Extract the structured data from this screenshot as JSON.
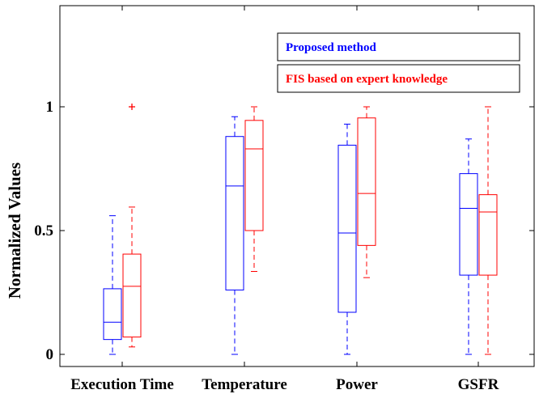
{
  "chart_data": {
    "type": "boxplot",
    "title": "",
    "xlabel": "",
    "ylabel": "Normalized Values",
    "ylim": [
      -0.06,
      1.4
    ],
    "yticks": [
      0,
      0.5,
      1
    ],
    "ytick_labels": [
      "0",
      "0.5",
      "1"
    ],
    "grid": false,
    "legend_position": "top-right",
    "categories": [
      "Execution Time",
      "Temperature",
      "Power",
      "GSFR"
    ],
    "series": [
      {
        "name": "Proposed method",
        "color": "#0000ff",
        "boxes": [
          {
            "whisker_low": 0.0,
            "q1": 0.06,
            "median": 0.13,
            "q3": 0.265,
            "whisker_high": 0.56,
            "outliers": []
          },
          {
            "whisker_low": 0.0,
            "q1": 0.26,
            "median": 0.68,
            "q3": 0.88,
            "whisker_high": 0.96,
            "outliers": []
          },
          {
            "whisker_low": 0.0,
            "q1": 0.17,
            "median": 0.49,
            "q3": 0.845,
            "whisker_high": 0.93,
            "outliers": []
          },
          {
            "whisker_low": 0.0,
            "q1": 0.32,
            "median": 0.59,
            "q3": 0.73,
            "whisker_high": 0.87,
            "outliers": []
          }
        ]
      },
      {
        "name": "FIS based on expert knowledge",
        "color": "#ff0000",
        "boxes": [
          {
            "whisker_low": 0.03,
            "q1": 0.07,
            "median": 0.275,
            "q3": 0.405,
            "whisker_high": 0.595,
            "outliers": [
              1.0
            ]
          },
          {
            "whisker_low": 0.335,
            "q1": 0.5,
            "median": 0.83,
            "q3": 0.945,
            "whisker_high": 1.0,
            "outliers": []
          },
          {
            "whisker_low": 0.31,
            "q1": 0.44,
            "median": 0.65,
            "q3": 0.955,
            "whisker_high": 1.0,
            "outliers": []
          },
          {
            "whisker_low": 0.0,
            "q1": 0.32,
            "median": 0.575,
            "q3": 0.645,
            "whisker_high": 1.0,
            "outliers": []
          }
        ]
      }
    ]
  }
}
